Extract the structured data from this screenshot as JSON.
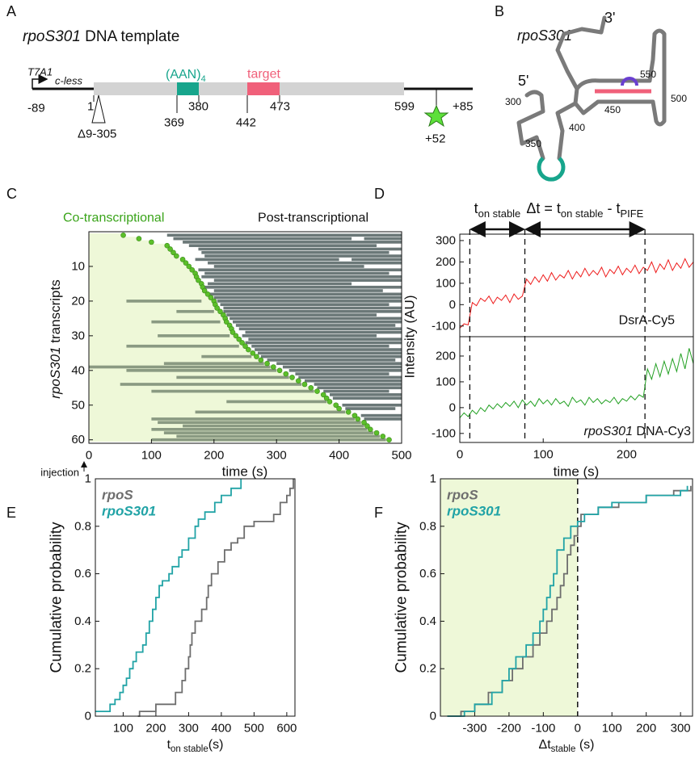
{
  "panels": {
    "letters": [
      "A",
      "B",
      "C",
      "D",
      "E",
      "F"
    ],
    "A": {
      "title_italic": "rpoS301",
      "title": "DNA template",
      "promoter": "T7A1",
      "cless": "c-less",
      "aan": "(AAN)",
      "aan_sub": "4",
      "target": "target",
      "positions": [
        "-89",
        "1",
        "380",
        "369",
        "442",
        "473",
        "599",
        "+85",
        "+52"
      ],
      "deletion": "Δ9-305"
    },
    "B": {
      "title": "rpoS301",
      "three_prime": "3'",
      "five_prime": "5'",
      "positions": [
        "550",
        "450",
        "500",
        "300",
        "400",
        "350"
      ]
    }
  },
  "chart_data": [
    {
      "type": "raster",
      "title_left": "Co-transcriptional",
      "title_right": "Post-transcriptional",
      "ylabel_italic": "rpoS301",
      "ylabel": "transcripts",
      "xlabel": "time (s)",
      "injection": "injection",
      "xlim": [
        0,
        500
      ],
      "xticks": [
        0,
        100,
        200,
        300,
        400,
        500
      ],
      "ylim": [
        0,
        61
      ],
      "yticks": [
        10,
        20,
        30,
        40,
        50,
        60
      ],
      "y_inverted": true,
      "dot_color": "#5cbf2a",
      "bar_color": "#6b7878",
      "pre_bar_color": "#8a9a82",
      "background_color": "#eef8d8",
      "dots": [
        55,
        80,
        100,
        125,
        130,
        135,
        140,
        150,
        155,
        160,
        165,
        170,
        172,
        175,
        180,
        182,
        185,
        190,
        195,
        200,
        202,
        205,
        210,
        215,
        218,
        220,
        225,
        228,
        230,
        235,
        240,
        245,
        250,
        255,
        262,
        268,
        275,
        285,
        295,
        305,
        315,
        325,
        335,
        345,
        355,
        365,
        375,
        380,
        385,
        395,
        400,
        415,
        425,
        430,
        440,
        445,
        450,
        460,
        470,
        480
      ],
      "intervals": [
        [
          [
            125,
            500
          ]
        ],
        [
          [
            135,
            420
          ],
          [
            440,
            500
          ]
        ],
        [
          [
            150,
            500
          ]
        ],
        [
          [
            160,
            460
          ]
        ],
        [
          [
            175,
            500
          ]
        ],
        [
          [
            180,
            480
          ]
        ],
        [
          [
            185,
            500
          ]
        ],
        [
          [
            170,
            400
          ],
          [
            420,
            500
          ]
        ],
        [
          [
            190,
            500
          ]
        ],
        [
          [
            200,
            440
          ]
        ],
        [
          [
            175,
            500
          ]
        ],
        [
          [
            185,
            480
          ]
        ],
        [
          [
            180,
            500
          ]
        ],
        [
          [
            200,
            500
          ]
        ],
        [
          [
            190,
            420
          ]
        ],
        [
          [
            185,
            500
          ]
        ],
        [
          [
            200,
            470
          ]
        ],
        [
          [
            190,
            500
          ]
        ],
        [
          [
            200,
            500
          ]
        ],
        [
          [
            60,
            180
          ],
          [
            205,
            500
          ]
        ],
        [
          [
            210,
            480
          ]
        ],
        [
          [
            215,
            500
          ]
        ],
        [
          [
            140,
            200
          ],
          [
            215,
            500
          ]
        ],
        [
          [
            220,
            460
          ]
        ],
        [
          [
            225,
            500
          ]
        ],
        [
          [
            100,
            210
          ],
          [
            230,
            500
          ]
        ],
        [
          [
            235,
            490
          ]
        ],
        [
          [
            240,
            500
          ]
        ],
        [
          [
            250,
            500
          ]
        ],
        [
          [
            110,
            225
          ],
          [
            245,
            460
          ]
        ],
        [
          [
            255,
            500
          ]
        ],
        [
          [
            250,
            500
          ]
        ],
        [
          [
            60,
            240
          ],
          [
            260,
            480
          ]
        ],
        [
          [
            265,
            500
          ]
        ],
        [
          [
            270,
            500
          ]
        ],
        [
          [
            180,
            260
          ],
          [
            275,
            500
          ]
        ],
        [
          [
            285,
            490
          ]
        ],
        [
          [
            120,
            280
          ],
          [
            300,
            500
          ]
        ],
        [
          [
            0,
            290
          ],
          [
            310,
            500
          ]
        ],
        [
          [
            60,
            300
          ],
          [
            320,
            500
          ]
        ],
        [
          [
            330,
            480
          ]
        ],
        [
          [
            140,
            320
          ],
          [
            335,
            500
          ]
        ],
        [
          [
            345,
            500
          ]
        ],
        [
          [
            50,
            340
          ],
          [
            360,
            500
          ]
        ],
        [
          [
            365,
            500
          ]
        ],
        [
          [
            100,
            360
          ],
          [
            375,
            480
          ]
        ],
        [
          [
            385,
            500
          ]
        ],
        [
          [
            390,
            500
          ]
        ],
        [
          [
            220,
            380
          ]
        ],
        [
          [
            405,
            500
          ]
        ],
        [
          [
            410,
            490
          ]
        ],
        [
          [
            170,
            410
          ]
        ],
        [
          [
            435,
            500
          ]
        ],
        [
          [
            100,
            425
          ],
          [
            440,
            500
          ]
        ],
        [
          [
            110,
            435
          ]
        ],
        [
          [
            150,
            440
          ]
        ],
        [
          [
            100,
            445
          ]
        ],
        [
          [
            120,
            455
          ]
        ],
        [
          [
            140,
            465
          ]
        ],
        [
          [
            100,
            475
          ]
        ]
      ]
    },
    {
      "type": "line",
      "ylabel": "Intensity (AU)",
      "ton": [
        "t",
        "on stable"
      ],
      "dt": [
        "Δt = t",
        "on stable",
        " - t",
        "PIFE"
      ],
      "vlines": [
        12,
        78,
        222
      ],
      "xlim": [
        0,
        280
      ],
      "ylim": [
        -150,
        330
      ],
      "yticks": [
        -100,
        0,
        100,
        200,
        300
      ],
      "series": [
        {
          "name": "DsrA-Cy5",
          "color": "#ee1c1c",
          "x": [
            0,
            5,
            10,
            15,
            20,
            25,
            30,
            35,
            40,
            45,
            50,
            55,
            60,
            65,
            70,
            75,
            80,
            85,
            90,
            95,
            100,
            105,
            110,
            115,
            120,
            125,
            130,
            135,
            140,
            145,
            150,
            155,
            160,
            165,
            170,
            175,
            180,
            185,
            190,
            195,
            200,
            205,
            210,
            215,
            220,
            225,
            230,
            235,
            240,
            245,
            250,
            255,
            260,
            265,
            270,
            275,
            280
          ],
          "values": [
            -110,
            -90,
            -95,
            10,
            -5,
            30,
            15,
            40,
            5,
            35,
            20,
            45,
            10,
            50,
            25,
            40,
            120,
            95,
            130,
            105,
            140,
            110,
            150,
            115,
            140,
            125,
            160,
            120,
            155,
            130,
            170,
            135,
            160,
            140,
            175,
            130,
            165,
            145,
            180,
            140,
            170,
            150,
            185,
            145,
            175,
            160,
            200,
            150,
            190,
            165,
            210,
            160,
            195,
            170,
            215,
            175,
            200
          ]
        }
      ]
    },
    {
      "type": "line",
      "xlabel": "time (s)",
      "xlim": [
        0,
        280
      ],
      "xticks": [
        0,
        100,
        200
      ],
      "ylim": [
        -135,
        275
      ],
      "yticks": [
        -100,
        0,
        100,
        200
      ],
      "series": [
        {
          "label_italic": "rpoS301",
          "name": "DNA-Cy3",
          "color": "#22a022",
          "x": [
            0,
            5,
            10,
            15,
            20,
            25,
            30,
            35,
            40,
            45,
            50,
            55,
            60,
            65,
            70,
            75,
            80,
            85,
            90,
            95,
            100,
            105,
            110,
            115,
            120,
            125,
            130,
            135,
            140,
            145,
            150,
            155,
            160,
            165,
            170,
            175,
            180,
            185,
            190,
            195,
            200,
            205,
            210,
            215,
            220,
            225,
            230,
            235,
            240,
            245,
            250,
            255,
            260,
            265,
            270,
            275,
            280
          ],
          "values": [
            -40,
            -20,
            -35,
            -10,
            -25,
            0,
            -15,
            10,
            -5,
            15,
            0,
            20,
            5,
            25,
            0,
            30,
            10,
            25,
            5,
            35,
            15,
            30,
            10,
            35,
            15,
            25,
            5,
            40,
            20,
            30,
            10,
            40,
            20,
            35,
            15,
            30,
            20,
            40,
            15,
            35,
            25,
            45,
            30,
            50,
            40,
            150,
            110,
            170,
            120,
            180,
            130,
            190,
            140,
            210,
            150,
            230,
            170
          ]
        }
      ]
    },
    {
      "type": "step",
      "ylabel": "Cumulative probability",
      "xlabel": [
        "t",
        "on stable",
        "(s)"
      ],
      "xlim": [
        15,
        625
      ],
      "xticks": [
        100,
        200,
        300,
        400,
        500,
        600
      ],
      "ylim": [
        0,
        1
      ],
      "yticks": [
        0,
        0.2,
        0.4,
        0.6,
        0.8,
        1
      ],
      "series": [
        {
          "name": "rpoS",
          "color": "#6e6e6e",
          "x": [
            145,
            150,
            200,
            260,
            280,
            290,
            300,
            305,
            310,
            320,
            340,
            355,
            360,
            370,
            390,
            410,
            430,
            450,
            470,
            500,
            560,
            580,
            600,
            610,
            620
          ],
          "values": [
            0,
            0.02,
            0.05,
            0.1,
            0.15,
            0.2,
            0.25,
            0.3,
            0.35,
            0.4,
            0.45,
            0.5,
            0.55,
            0.6,
            0.65,
            0.7,
            0.73,
            0.75,
            0.8,
            0.82,
            0.85,
            0.9,
            0.93,
            0.96,
            1
          ]
        },
        {
          "name": "rpoS301",
          "color": "#21a3a6",
          "x": [
            15,
            60,
            75,
            90,
            100,
            110,
            120,
            130,
            140,
            160,
            170,
            180,
            190,
            200,
            210,
            220,
            240,
            250,
            270,
            280,
            300,
            320,
            330,
            350,
            380,
            400,
            430,
            460
          ],
          "values": [
            0.02,
            0.05,
            0.07,
            0.1,
            0.13,
            0.16,
            0.2,
            0.23,
            0.27,
            0.3,
            0.35,
            0.4,
            0.45,
            0.5,
            0.55,
            0.57,
            0.6,
            0.63,
            0.67,
            0.7,
            0.75,
            0.8,
            0.83,
            0.86,
            0.9,
            0.93,
            0.96,
            1
          ]
        }
      ]
    },
    {
      "type": "step",
      "xlabel": [
        "Δt",
        "stable",
        " (s)"
      ],
      "vline": 0,
      "shade_color": "#eef8d8",
      "xlim": [
        -400,
        335
      ],
      "xticks": [
        -300,
        -200,
        -100,
        0,
        100,
        200,
        300
      ],
      "ylim": [
        0,
        1
      ],
      "yticks": [
        0,
        0.2,
        0.4,
        0.6,
        0.8,
        1
      ],
      "series": [
        {
          "name": "rpoS",
          "color": "#6e6e6e",
          "x": [
            -380,
            -340,
            -300,
            -260,
            -220,
            -190,
            -160,
            -130,
            -110,
            -90,
            -75,
            -60,
            -50,
            -40,
            -30,
            -20,
            -10,
            0,
            10,
            60,
            120,
            200,
            280,
            330
          ],
          "values": [
            0,
            0.02,
            0.05,
            0.1,
            0.15,
            0.2,
            0.25,
            0.3,
            0.35,
            0.4,
            0.45,
            0.5,
            0.55,
            0.6,
            0.68,
            0.72,
            0.76,
            0.8,
            0.85,
            0.88,
            0.9,
            0.93,
            0.95,
            0.97
          ]
        },
        {
          "name": "rpoS301",
          "color": "#21a3a6",
          "x": [
            -380,
            -330,
            -300,
            -250,
            -220,
            -200,
            -180,
            -150,
            -130,
            -110,
            -100,
            -90,
            -80,
            -70,
            -60,
            -40,
            -20,
            0,
            20,
            60,
            100,
            200,
            300,
            320
          ],
          "values": [
            0,
            0.02,
            0.05,
            0.1,
            0.15,
            0.2,
            0.25,
            0.3,
            0.35,
            0.4,
            0.45,
            0.5,
            0.55,
            0.6,
            0.7,
            0.75,
            0.8,
            0.82,
            0.85,
            0.88,
            0.9,
            0.93,
            0.95,
            0.97
          ]
        }
      ]
    }
  ]
}
